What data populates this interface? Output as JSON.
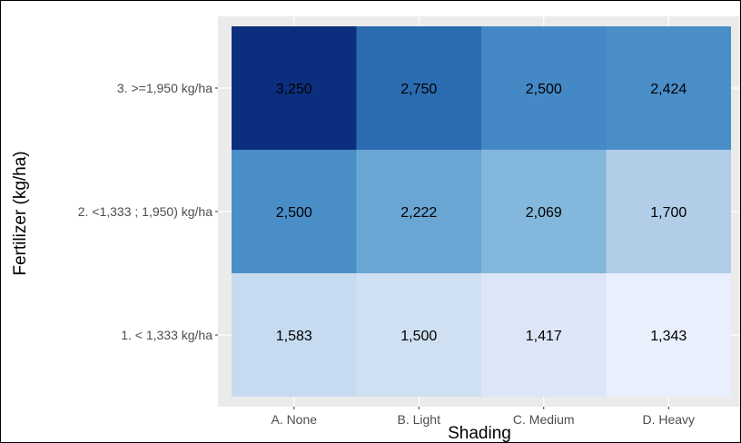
{
  "chart_data": {
    "type": "heatmap",
    "xlabel": "Shading",
    "ylabel": "Fertilizer (kg/ha)",
    "x_categories": [
      "A. None",
      "B. Light",
      "C. Medium",
      "D. Heavy"
    ],
    "y_categories": [
      "1. < 1,333 kg/ha",
      "2. <1,333 ; 1,950) kg/ha",
      "3. >=1,950 kg/ha"
    ],
    "values": [
      [
        1583,
        1500,
        1417,
        1343
      ],
      [
        2500,
        2222,
        2069,
        1700
      ],
      [
        3250,
        2750,
        2500,
        2424
      ]
    ],
    "labels": [
      [
        "1,583",
        "1,500",
        "1,417",
        "1,343"
      ],
      [
        "2,500",
        "2,222",
        "2,069",
        "1,700"
      ],
      [
        "3,250",
        "2,750",
        "2,500",
        "2,424"
      ]
    ],
    "colors": [
      [
        "#c6dbef",
        "#cfe0f2",
        "#dce6f8",
        "#e9effd"
      ],
      [
        "#4a8ec8",
        "#6aa6d4",
        "#83b7db",
        "#b1cde8"
      ],
      [
        "#0b2f7e",
        "#2b6cb0",
        "#4588c6",
        "#4a8ec8"
      ]
    ],
    "panel_background": "#ebebeb",
    "grid": true,
    "legend": "none"
  }
}
